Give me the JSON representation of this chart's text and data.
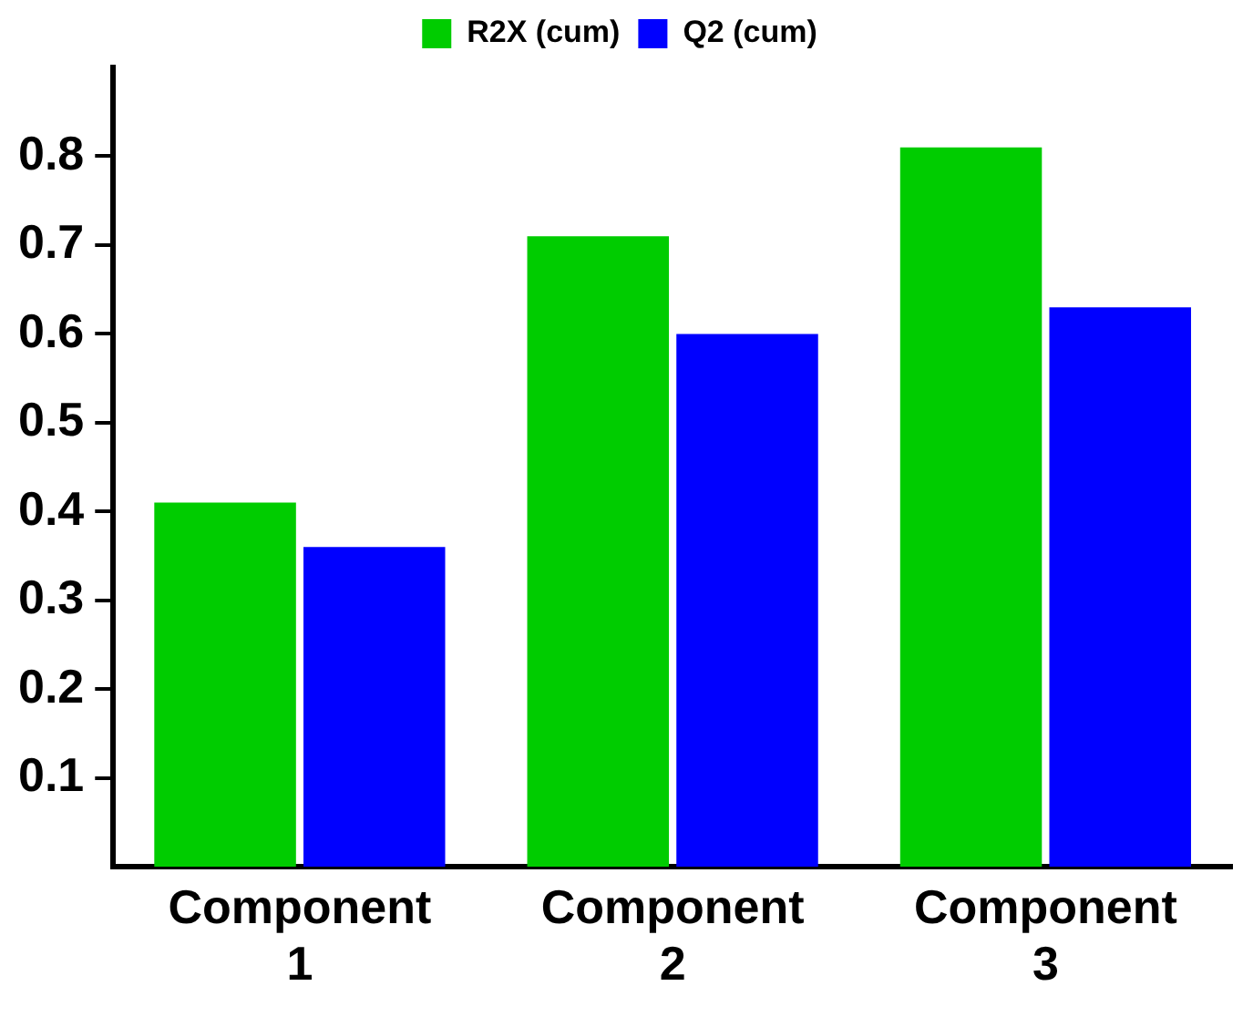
{
  "chart_data": {
    "type": "bar",
    "categories": [
      "Component 1",
      "Component 2",
      "Component 3"
    ],
    "series": [
      {
        "name": "R2X (cum)",
        "color": "#00cc00",
        "values": [
          0.41,
          0.71,
          0.81
        ]
      },
      {
        "name": "Q2 (cum)",
        "color": "#0000ff",
        "values": [
          0.36,
          0.6,
          0.63
        ]
      }
    ],
    "ylim": [
      0,
      0.9
    ],
    "yticks": [
      0.1,
      0.2,
      0.3,
      0.4,
      0.5,
      0.6,
      0.7,
      0.8
    ],
    "grid": false,
    "legend": "top"
  }
}
